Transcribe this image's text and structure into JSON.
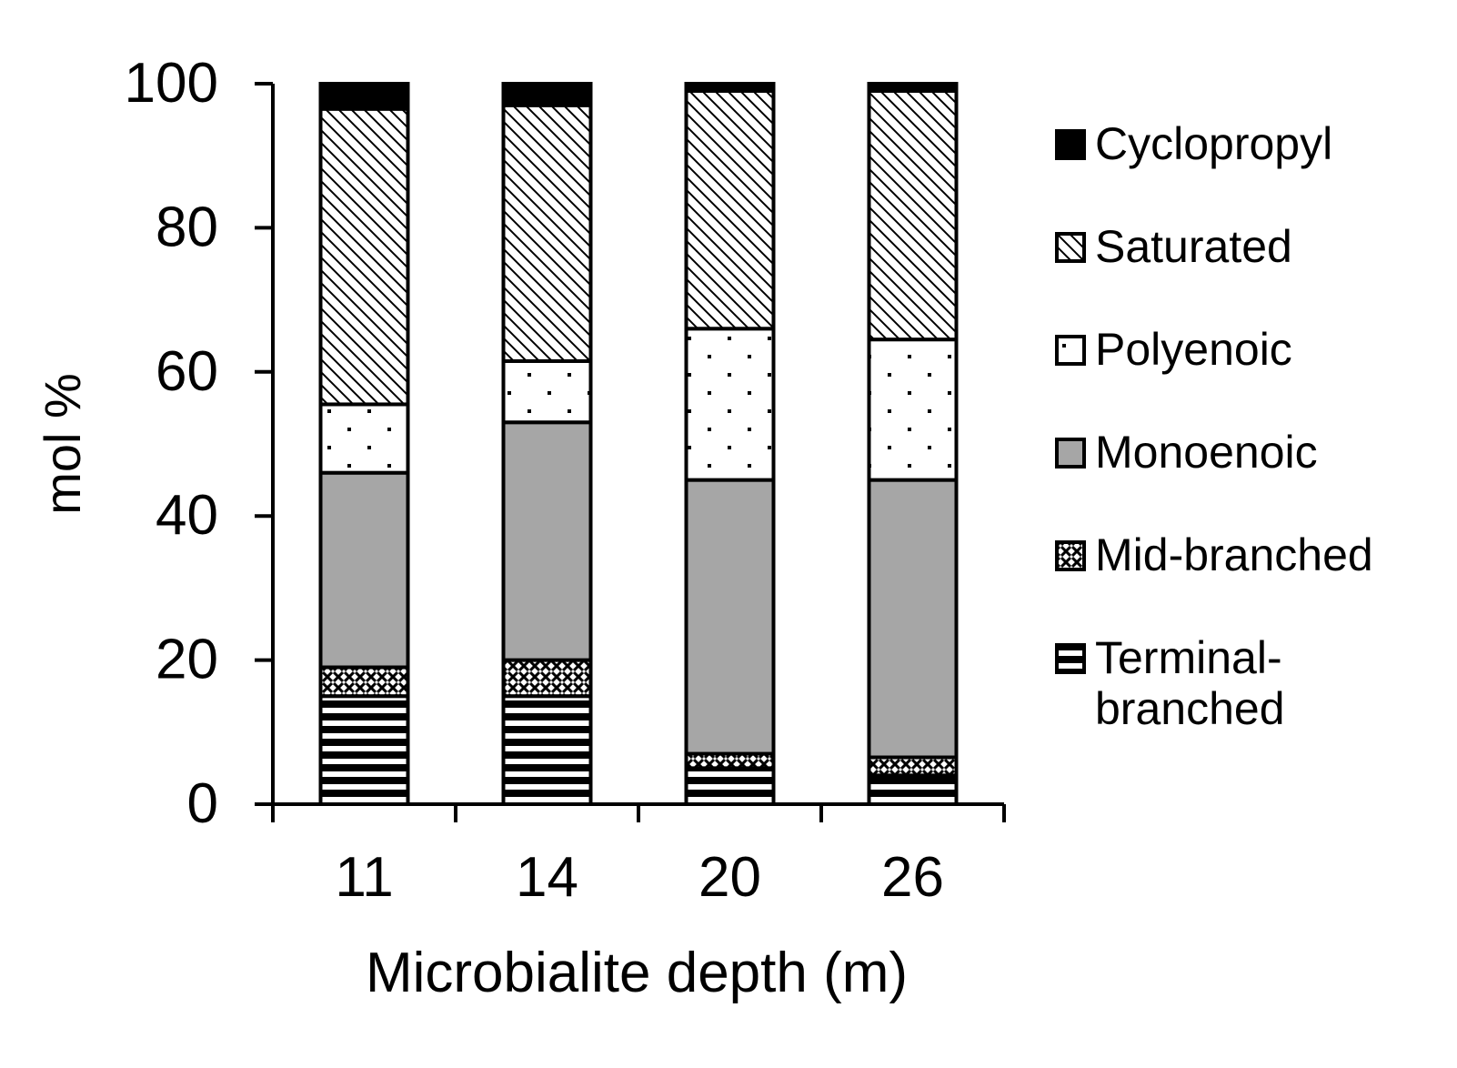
{
  "chart_data": {
    "type": "stacked-bar",
    "categories": [
      "11",
      "14",
      "20",
      "26"
    ],
    "xlabel": "Microbialite depth (m)",
    "ylabel": "mol %",
    "ylim": [
      0,
      100
    ],
    "yticks": [
      "0",
      "20",
      "40",
      "60",
      "80",
      "100"
    ],
    "legend_position": "right",
    "series": [
      {
        "name": "Terminal-branched",
        "label_lines": [
          "Terminal-",
          "branched"
        ],
        "pattern": "horizontal-stripes",
        "values": [
          15,
          15,
          5,
          4
        ]
      },
      {
        "name": "Mid-branched",
        "label_lines": [
          "Mid-branched"
        ],
        "pattern": "crosshatch-dots",
        "values": [
          4,
          5,
          2,
          2.5
        ]
      },
      {
        "name": "Monoenoic",
        "label_lines": [
          "Monoenoic"
        ],
        "pattern": "solid-gray",
        "values": [
          27,
          33,
          38,
          38.5
        ]
      },
      {
        "name": "Polyenoic",
        "label_lines": [
          "Polyenoic"
        ],
        "pattern": "sparse-dots",
        "values": [
          9.5,
          8.5,
          21,
          19.5
        ]
      },
      {
        "name": "Saturated",
        "label_lines": [
          "Saturated"
        ],
        "pattern": "diagonal-hatch",
        "values": [
          41,
          35.5,
          33,
          34.5
        ]
      },
      {
        "name": "Cyclopropyl",
        "label_lines": [
          "Cyclopropyl"
        ],
        "pattern": "solid-black",
        "values": [
          3.5,
          3,
          1,
          1
        ]
      }
    ],
    "colors": {
      "monoenoic": "#a6a6a6",
      "cyclopropyl": "#000000",
      "axis": "#000000"
    }
  }
}
